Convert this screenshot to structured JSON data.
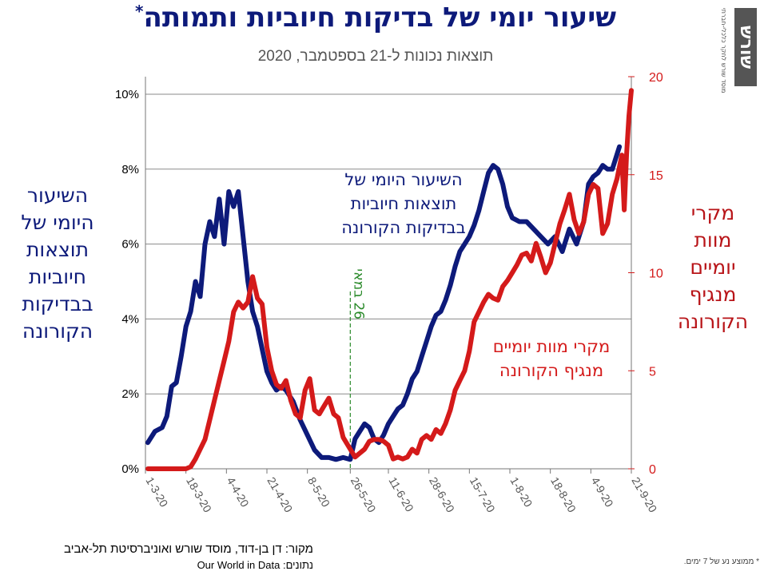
{
  "header": {
    "title": "שיעור יומי של בדיקות חיוביות ותמותה",
    "title_mark": "*",
    "subtitle": "תוצאות נכונות ל-21 בספטמבר, 2020"
  },
  "logo": {
    "mark": "שורש",
    "tagline": "מוסד שורש לחקר כלכלי-חברתי"
  },
  "side_labels": {
    "left": [
      "השיעור",
      "היומי של",
      "תוצאות",
      "חיוביות",
      "בבדיקות",
      "הקורונה"
    ],
    "right": [
      "מקרי",
      "מוות",
      "יומיים",
      "מנגיף",
      "הקורונה"
    ]
  },
  "footer": {
    "source": "מקור: דן בן-דוד, מוסד שורש ואוניברסיטת תל-אביב",
    "data_source": "נתונים: Our World in Data",
    "footnote": "* ממוצע נע של 7 ימים."
  },
  "colors": {
    "positive": "#0d1a7a",
    "deaths": "#d41a1a",
    "marker": "#2a8a2a",
    "title": "#0d1a7a"
  },
  "chart_data": {
    "type": "line",
    "x_ticks": [
      "1-3-20",
      "18-3-20",
      "4-4-20",
      "21-4-20",
      "8-5-20",
      "26-5-20",
      "11-6-20",
      "28-6-20",
      "15-7-20",
      "1-8-20",
      "18-8-20",
      "4-9-20",
      "21-9-20"
    ],
    "y_left": {
      "ticks": [
        "0%",
        "2%",
        "4%",
        "6%",
        "8%",
        "10%"
      ],
      "range": [
        0,
        10
      ]
    },
    "y_right": {
      "ticks": [
        "0",
        "5",
        "10",
        "15",
        "20"
      ],
      "range": [
        0,
        20
      ]
    },
    "grid": true,
    "marker": {
      "date": "2020-05-26",
      "label": "26 במאי"
    },
    "series": [
      {
        "name": "השיעור היומי של תוצאות חיוביות בבדיקות הקורונה",
        "axis": "left",
        "color": "#0d1a7a",
        "points": [
          [
            "2020-03-02",
            0.7
          ],
          [
            "2020-03-05",
            1.0
          ],
          [
            "2020-03-08",
            1.1
          ],
          [
            "2020-03-10",
            1.4
          ],
          [
            "2020-03-12",
            2.2
          ],
          [
            "2020-03-14",
            2.3
          ],
          [
            "2020-03-16",
            3.0
          ],
          [
            "2020-03-18",
            3.8
          ],
          [
            "2020-03-20",
            4.2
          ],
          [
            "2020-03-22",
            5.0
          ],
          [
            "2020-03-24",
            4.6
          ],
          [
            "2020-03-26",
            6.0
          ],
          [
            "2020-03-28",
            6.6
          ],
          [
            "2020-03-30",
            6.2
          ],
          [
            "2020-04-01",
            7.2
          ],
          [
            "2020-04-03",
            6.0
          ],
          [
            "2020-04-05",
            7.4
          ],
          [
            "2020-04-07",
            7.0
          ],
          [
            "2020-04-09",
            7.4
          ],
          [
            "2020-04-11",
            6.2
          ],
          [
            "2020-04-13",
            5.0
          ],
          [
            "2020-04-15",
            4.2
          ],
          [
            "2020-04-17",
            3.8
          ],
          [
            "2020-04-19",
            3.2
          ],
          [
            "2020-04-21",
            2.6
          ],
          [
            "2020-04-23",
            2.3
          ],
          [
            "2020-04-25",
            2.1
          ],
          [
            "2020-04-27",
            2.2
          ],
          [
            "2020-04-29",
            2.1
          ],
          [
            "2020-05-02",
            1.8
          ],
          [
            "2020-05-05",
            1.3
          ],
          [
            "2020-05-08",
            0.9
          ],
          [
            "2020-05-11",
            0.5
          ],
          [
            "2020-05-14",
            0.3
          ],
          [
            "2020-05-17",
            0.3
          ],
          [
            "2020-05-20",
            0.25
          ],
          [
            "2020-05-23",
            0.3
          ],
          [
            "2020-05-26",
            0.25
          ],
          [
            "2020-05-28",
            0.8
          ],
          [
            "2020-05-30",
            1.0
          ],
          [
            "2020-06-01",
            1.2
          ],
          [
            "2020-06-03",
            1.1
          ],
          [
            "2020-06-05",
            0.8
          ],
          [
            "2020-06-07",
            0.7
          ],
          [
            "2020-06-09",
            0.9
          ],
          [
            "2020-06-11",
            1.2
          ],
          [
            "2020-06-13",
            1.4
          ],
          [
            "2020-06-15",
            1.6
          ],
          [
            "2020-06-17",
            1.7
          ],
          [
            "2020-06-19",
            2.0
          ],
          [
            "2020-06-21",
            2.4
          ],
          [
            "2020-06-23",
            2.6
          ],
          [
            "2020-06-25",
            3.0
          ],
          [
            "2020-06-27",
            3.4
          ],
          [
            "2020-06-29",
            3.8
          ],
          [
            "2020-07-01",
            4.1
          ],
          [
            "2020-07-03",
            4.2
          ],
          [
            "2020-07-05",
            4.5
          ],
          [
            "2020-07-07",
            4.9
          ],
          [
            "2020-07-09",
            5.4
          ],
          [
            "2020-07-11",
            5.8
          ],
          [
            "2020-07-13",
            6.0
          ],
          [
            "2020-07-15",
            6.2
          ],
          [
            "2020-07-17",
            6.5
          ],
          [
            "2020-07-19",
            6.9
          ],
          [
            "2020-07-21",
            7.4
          ],
          [
            "2020-07-23",
            7.9
          ],
          [
            "2020-07-25",
            8.1
          ],
          [
            "2020-07-27",
            8.0
          ],
          [
            "2020-07-29",
            7.6
          ],
          [
            "2020-07-31",
            7.0
          ],
          [
            "2020-08-02",
            6.7
          ],
          [
            "2020-08-05",
            6.6
          ],
          [
            "2020-08-08",
            6.6
          ],
          [
            "2020-08-11",
            6.4
          ],
          [
            "2020-08-14",
            6.2
          ],
          [
            "2020-08-17",
            6.0
          ],
          [
            "2020-08-20",
            6.2
          ],
          [
            "2020-08-23",
            5.8
          ],
          [
            "2020-08-26",
            6.4
          ],
          [
            "2020-08-29",
            6.0
          ],
          [
            "2020-09-01",
            6.6
          ],
          [
            "2020-09-03",
            7.6
          ],
          [
            "2020-09-05",
            7.8
          ],
          [
            "2020-09-07",
            7.9
          ],
          [
            "2020-09-09",
            8.1
          ],
          [
            "2020-09-11",
            8.0
          ],
          [
            "2020-09-13",
            8.0
          ],
          [
            "2020-09-16",
            8.6
          ]
        ]
      },
      {
        "name": "מקרי מוות יומיים מנגיף הקורונה",
        "axis": "right",
        "color": "#d41a1a",
        "points": [
          [
            "2020-03-02",
            0
          ],
          [
            "2020-03-10",
            0
          ],
          [
            "2020-03-18",
            0
          ],
          [
            "2020-03-20",
            0.1
          ],
          [
            "2020-03-22",
            0.5
          ],
          [
            "2020-03-24",
            1.0
          ],
          [
            "2020-03-26",
            1.5
          ],
          [
            "2020-03-28",
            2.5
          ],
          [
            "2020-03-30",
            3.5
          ],
          [
            "2020-04-01",
            4.5
          ],
          [
            "2020-04-03",
            5.5
          ],
          [
            "2020-04-05",
            6.5
          ],
          [
            "2020-04-07",
            8.0
          ],
          [
            "2020-04-09",
            8.5
          ],
          [
            "2020-04-11",
            8.2
          ],
          [
            "2020-04-13",
            8.5
          ],
          [
            "2020-04-15",
            9.8
          ],
          [
            "2020-04-17",
            8.7
          ],
          [
            "2020-04-19",
            8.4
          ],
          [
            "2020-04-21",
            6.2
          ],
          [
            "2020-04-23",
            5.0
          ],
          [
            "2020-04-25",
            4.3
          ],
          [
            "2020-04-27",
            4.1
          ],
          [
            "2020-04-29",
            4.5
          ],
          [
            "2020-05-01",
            3.5
          ],
          [
            "2020-05-03",
            2.8
          ],
          [
            "2020-05-05",
            2.6
          ],
          [
            "2020-05-07",
            4.0
          ],
          [
            "2020-05-09",
            4.6
          ],
          [
            "2020-05-11",
            3.0
          ],
          [
            "2020-05-13",
            2.8
          ],
          [
            "2020-05-15",
            3.2
          ],
          [
            "2020-05-17",
            3.6
          ],
          [
            "2020-05-19",
            2.8
          ],
          [
            "2020-05-21",
            2.6
          ],
          [
            "2020-05-23",
            1.6
          ],
          [
            "2020-05-26",
            1.0
          ],
          [
            "2020-05-28",
            0.6
          ],
          [
            "2020-05-30",
            0.8
          ],
          [
            "2020-06-01",
            1.0
          ],
          [
            "2020-06-03",
            1.4
          ],
          [
            "2020-06-05",
            1.5
          ],
          [
            "2020-06-07",
            1.5
          ],
          [
            "2020-06-09",
            1.4
          ],
          [
            "2020-06-11",
            1.2
          ],
          [
            "2020-06-13",
            0.5
          ],
          [
            "2020-06-15",
            0.6
          ],
          [
            "2020-06-17",
            0.5
          ],
          [
            "2020-06-19",
            0.6
          ],
          [
            "2020-06-21",
            1.0
          ],
          [
            "2020-06-23",
            0.8
          ],
          [
            "2020-06-25",
            1.5
          ],
          [
            "2020-06-27",
            1.7
          ],
          [
            "2020-06-29",
            1.5
          ],
          [
            "2020-07-01",
            2.0
          ],
          [
            "2020-07-03",
            1.8
          ],
          [
            "2020-07-05",
            2.3
          ],
          [
            "2020-07-07",
            3.0
          ],
          [
            "2020-07-09",
            4.0
          ],
          [
            "2020-07-11",
            4.5
          ],
          [
            "2020-07-13",
            5.0
          ],
          [
            "2020-07-15",
            6.0
          ],
          [
            "2020-07-17",
            7.5
          ],
          [
            "2020-07-19",
            8.0
          ],
          [
            "2020-07-21",
            8.5
          ],
          [
            "2020-07-23",
            8.9
          ],
          [
            "2020-07-25",
            8.7
          ],
          [
            "2020-07-27",
            8.6
          ],
          [
            "2020-07-29",
            9.3
          ],
          [
            "2020-07-31",
            9.6
          ],
          [
            "2020-08-02",
            10.0
          ],
          [
            "2020-08-04",
            10.4
          ],
          [
            "2020-08-06",
            10.9
          ],
          [
            "2020-08-08",
            11.0
          ],
          [
            "2020-08-10",
            10.6
          ],
          [
            "2020-08-12",
            11.5
          ],
          [
            "2020-08-14",
            10.8
          ],
          [
            "2020-08-16",
            10.0
          ],
          [
            "2020-08-18",
            10.5
          ],
          [
            "2020-08-20",
            11.5
          ],
          [
            "2020-08-22",
            12.5
          ],
          [
            "2020-08-24",
            13.2
          ],
          [
            "2020-08-26",
            14.0
          ],
          [
            "2020-08-28",
            12.7
          ],
          [
            "2020-08-30",
            12.0
          ],
          [
            "2020-09-01",
            12.6
          ],
          [
            "2020-09-03",
            14.0
          ],
          [
            "2020-09-05",
            14.5
          ],
          [
            "2020-09-07",
            14.3
          ],
          [
            "2020-09-09",
            12.0
          ],
          [
            "2020-09-11",
            12.5
          ],
          [
            "2020-09-13",
            14.0
          ],
          [
            "2020-09-15",
            14.8
          ],
          [
            "2020-09-17",
            16.0
          ],
          [
            "2020-09-18",
            13.2
          ],
          [
            "2020-09-19",
            16.0
          ],
          [
            "2020-09-20",
            18.0
          ],
          [
            "2020-09-21",
            19.3
          ]
        ]
      }
    ],
    "in_chart_labels": {
      "positive": [
        "השיעור היומי של",
        "תוצאות חיוביות",
        "בבדיקות הקורונה"
      ],
      "deaths": [
        "מקרי מוות יומיים",
        "מנגיף הקורונה"
      ]
    }
  }
}
